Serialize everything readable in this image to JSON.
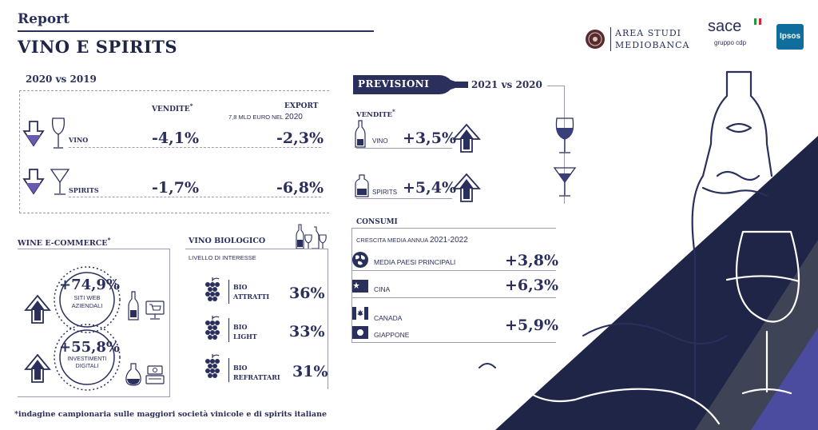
{
  "header": {
    "report_label": "Report",
    "title": "VINO E SPIRITS",
    "logos": {
      "mediobanca_line1": "AREA STUDI",
      "mediobanca_line2": "MEDIOBANCA",
      "sace": "sace",
      "sace_sub": "gruppo cdp",
      "ipsos": "Ipsos"
    }
  },
  "comparison": {
    "title": "2020 vs 2019",
    "col_sales": "VENDITE",
    "col_sales_mark": "*",
    "col_export": "EXPORT",
    "export_sub_prefix": "7,8 MLD EURO NEL ",
    "export_sub_year": "2020",
    "rows": [
      {
        "label": "VINO",
        "sales": "-4,1%",
        "export": "-2,3%"
      },
      {
        "label": "SPIRITS",
        "sales": "-1,7%",
        "export": "-6,8%"
      }
    ]
  },
  "forecast": {
    "badge": "PREVISIONI",
    "title": "2021 vs 2020",
    "sales_label": "VENDITE",
    "sales_mark": "*",
    "rows": [
      {
        "label": "VINO",
        "value": "+3,5%"
      },
      {
        "label": "SPIRITS",
        "value": "+5,4%"
      }
    ]
  },
  "consumption": {
    "title": "CONSUMI",
    "subtitle_prefix": "CRESCITA MEDIA ANNUA ",
    "subtitle_years": "2021-2022",
    "rows": [
      {
        "label": "MEDIA PAESI PRINCIPALI",
        "value": "+3,8%"
      },
      {
        "label": "CINA",
        "value": "+6,3%"
      },
      {
        "label": "CANADA",
        "label2": "GIAPPONE",
        "value": "+5,9%"
      }
    ]
  },
  "ecommerce": {
    "title": "WINE E-COMMERCE",
    "title_mark": "*",
    "items": [
      {
        "value": "+74,9%",
        "line1": "SITI WEB",
        "line2": "AZIENDALI"
      },
      {
        "value": "+55,8%",
        "line1": "INVESTIMENTI",
        "line2": "DIGITALI"
      }
    ]
  },
  "organic": {
    "title": "VINO BIOLOGICO",
    "subtitle": "LIVELLO DI INTERESSE",
    "rows": [
      {
        "line1": "BIO",
        "line2": "ATTRATTI",
        "value": "36%"
      },
      {
        "line1": "BIO",
        "line2": "LIGHT",
        "value": "33%"
      },
      {
        "line1": "BIO",
        "line2": "REFRATTARI",
        "value": "31%"
      }
    ]
  },
  "footnote": "*indagine campionaria sulle maggiori società vinicole e di spirits italiane",
  "colors": {
    "navy": "#2a2f5b",
    "dark": "#1f2547",
    "grey": "#4a5068",
    "accent_purple": "#5a5aa8"
  }
}
